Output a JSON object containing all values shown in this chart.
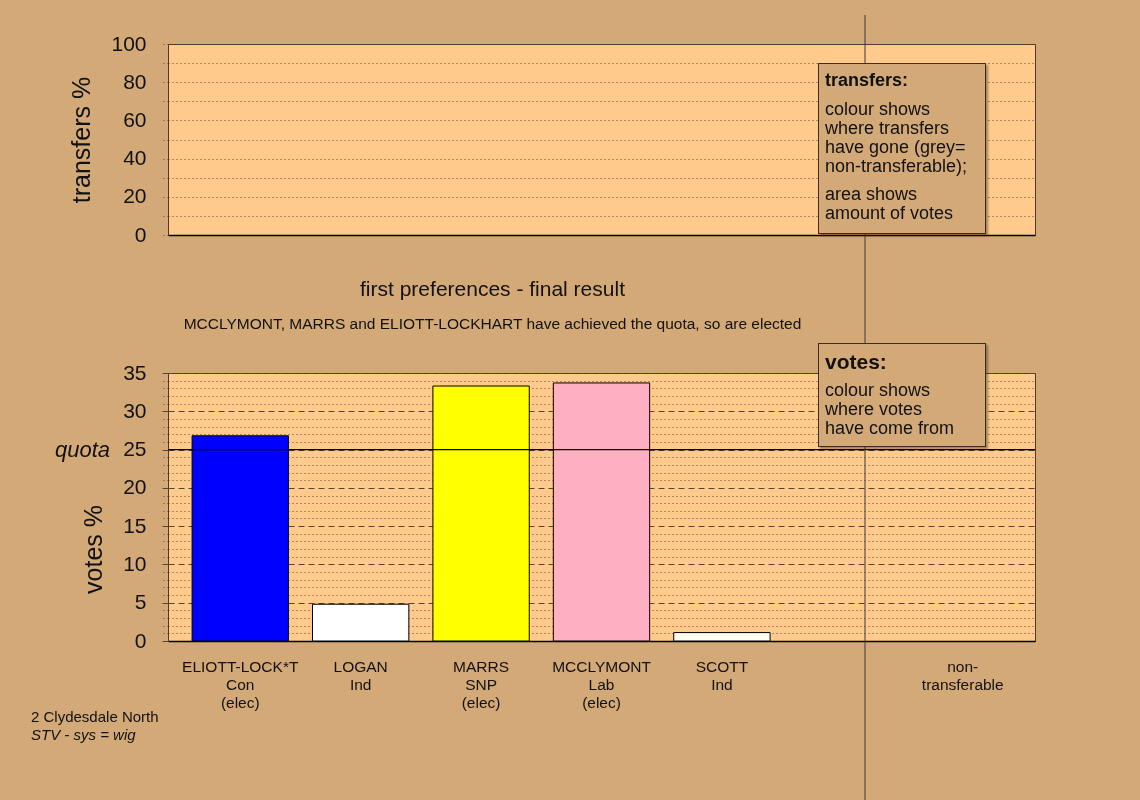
{
  "chart_data": [
    {
      "type": "bar",
      "ylabel": "transfers %",
      "values": [
        null,
        null,
        null,
        null,
        null,
        null,
        null
      ],
      "ylim": [
        0,
        100
      ],
      "yticks": [
        0,
        {
          "value": 10,
          "label": null
        },
        20,
        {
          "value": 30,
          "label": null
        },
        40,
        {
          "value": 50,
          "label": null
        },
        60,
        {
          "value": 70,
          "label": null
        },
        80,
        {
          "value": 90,
          "label": null
        },
        100
      ],
      "grid": "y",
      "tick_labels": "y",
      "annotations": [
        "transfers:",
        "colour shows\nwhere transfers\nhave gone (grey=\nnon-transferable);",
        "area shows\namount of votes"
      ]
    },
    {
      "type": "bar",
      "title": "first preferences - final result",
      "subtitle": "MCCLYMONT, MARRS and ELIOTT-LOCKHART have achieved the quota, so are elected",
      "ylabel": "votes %",
      "categories": [
        "ELIOTT-LOCK*T\nCon\n(elec)",
        "LOGAN\nInd",
        "MARRS\nSNP\n(elec)",
        "MCCLYMONT\nLab\n(elec)",
        "SCOTT\nInd",
        null,
        "non-\ntransferable"
      ],
      "values": [
        26.8,
        4.8,
        33.3,
        33.7,
        1.1,
        null,
        null
      ],
      "colors": [
        "#0000ff",
        "#ffffff",
        "#ffff00",
        "#ffafc0",
        "#fffff0",
        null,
        null
      ],
      "ylim": [
        0,
        35
      ],
      "yticks": [
        0,
        {
          "value": 1,
          "label": null
        },
        {
          "value": 2,
          "label": null
        },
        {
          "value": 3,
          "label": null
        },
        {
          "value": 4,
          "label": null
        },
        5,
        {
          "value": 6,
          "label": null
        },
        {
          "value": 7,
          "label": null
        },
        {
          "value": 8,
          "label": null
        },
        {
          "value": 9,
          "label": null
        },
        10,
        {
          "value": 11,
          "label": null
        },
        {
          "value": 12,
          "label": null
        },
        {
          "value": 13,
          "label": null
        },
        {
          "value": 14,
          "label": null
        },
        15,
        {
          "value": 16,
          "label": null
        },
        {
          "value": 17,
          "label": null
        },
        {
          "value": 18,
          "label": null
        },
        {
          "value": 19,
          "label": null
        },
        20,
        {
          "value": 21,
          "label": null
        },
        {
          "value": 22,
          "label": null
        },
        {
          "value": 23,
          "label": null
        },
        {
          "value": 24,
          "label": null
        },
        25,
        {
          "value": 26,
          "label": null
        },
        {
          "value": 27,
          "label": null
        },
        {
          "value": 28,
          "label": null
        },
        {
          "value": 29,
          "label": null
        },
        30,
        {
          "value": 31,
          "label": null
        },
        {
          "value": 32,
          "label": null
        },
        {
          "value": 33,
          "label": null
        },
        {
          "value": 34,
          "label": null
        },
        35
      ],
      "grid": "y",
      "ref_lines": [
        {
          "axis": "y",
          "value": 25,
          "label": "quota"
        }
      ],
      "annotations": [
        "votes:",
        "colour shows\nwhere votes\nhave come from",
        "2 Clydesdale North",
        "STV - sys = wig"
      ]
    }
  ]
}
